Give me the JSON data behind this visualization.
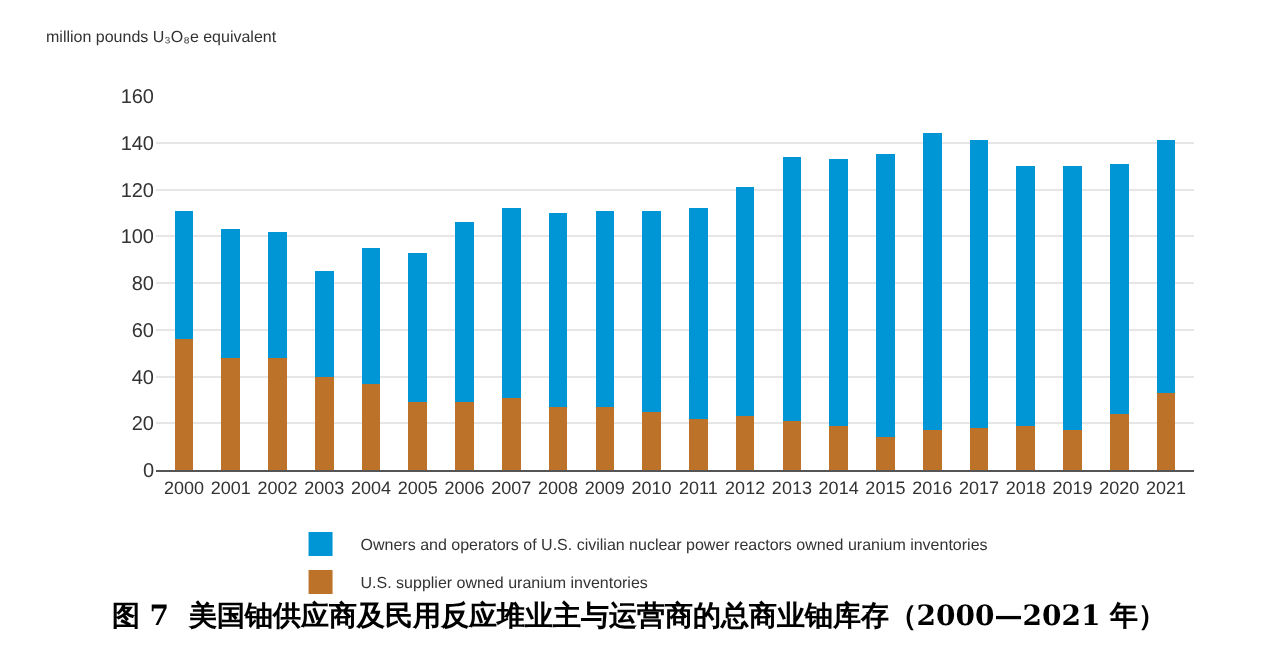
{
  "chart_data": {
    "type": "bar",
    "title": "图 7  美国铀供应商及民用反应堆业主与运营商的总商业铀库存（2000—2021 年）",
    "ylabel": "million pounds U₃O₈e equivalent",
    "categories": [
      "2000",
      "2001",
      "2002",
      "2003",
      "2004",
      "2005",
      "2006",
      "2007",
      "2008",
      "2009",
      "2010",
      "2011",
      "2012",
      "2013",
      "2014",
      "2015",
      "2016",
      "2017",
      "2018",
      "2019",
      "2020",
      "2021"
    ],
    "stacked": true,
    "series": [
      {
        "name": "U.S. supplier owned uranium inventories",
        "color": "#bd722a",
        "values": [
          56,
          48,
          48,
          40,
          37,
          29,
          29,
          31,
          27,
          27,
          25,
          22,
          23,
          21,
          19,
          14,
          17,
          18,
          19,
          17,
          24,
          33
        ]
      },
      {
        "name": "Owners and operators of U.S. civilian nuclear power reactors owned uranium inventories",
        "color": "#0096d6",
        "values": [
          55,
          55,
          54,
          45,
          58,
          64,
          77,
          81,
          83,
          84,
          86,
          90,
          98,
          113,
          114,
          121,
          127,
          123,
          111,
          113,
          107,
          108
        ]
      }
    ],
    "ylim": [
      0,
      160
    ],
    "yticks": [
      0,
      20,
      40,
      60,
      80,
      100,
      120,
      140,
      160
    ],
    "grid": "y",
    "legend": "bottom"
  }
}
